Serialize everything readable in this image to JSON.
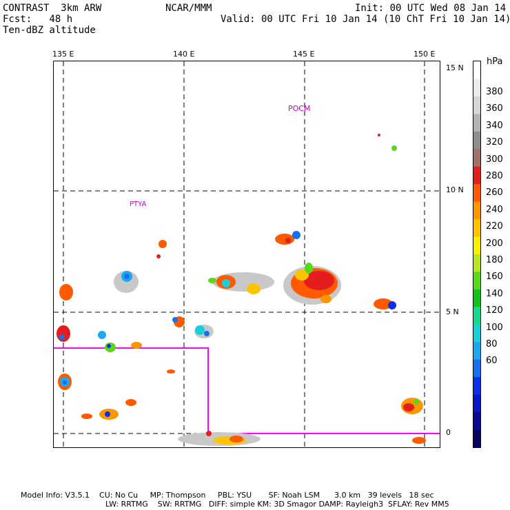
{
  "header": {
    "model": "CONTRAST  3km ARW",
    "org": "NCAR/MMM",
    "init": "Init: 00 UTC Wed 08 Jan 14",
    "fcst": "Fcst:   48 h",
    "valid": "Valid: 00 UTC Fri 10 Jan 14 (10 ChT Fri 10 Jan 14)",
    "field": "Ten-dBZ altitude"
  },
  "map": {
    "lon_ticks": [
      "135 E",
      "140 E",
      "145 E",
      "150 E"
    ],
    "lat_ticks": [
      "15 N",
      "10 N",
      "5 N",
      "0"
    ],
    "labels": [
      "POCM",
      "PTYA"
    ],
    "box_color": "#ff00ff"
  },
  "colorbar": {
    "unit": "hPa",
    "ticks": [
      "380",
      "360",
      "340",
      "320",
      "300",
      "280",
      "260",
      "240",
      "220",
      "200",
      "180",
      "160",
      "140",
      "120",
      "100",
      "80",
      "60"
    ],
    "colors": [
      "#ffffff",
      "#ececec",
      "#d6d6d6",
      "#b4b4b4",
      "#8e8e8e",
      "#a0726a",
      "#e41e1e",
      "#ff5a00",
      "#ff9600",
      "#ffc400",
      "#f8f000",
      "#b8e620",
      "#5ad81a",
      "#12c41a",
      "#18d88e",
      "#16d2d8",
      "#1aa8f0",
      "#1870f0",
      "#0c30e8",
      "#0818c8",
      "#0a0890",
      "#070660"
    ]
  },
  "footer": {
    "line1": "Model Info: V3.5.1    CU: No Cu     MP: Thompson     PBL: YSU       SF: Noah LSM      3.0 km   39 levels   18 sec",
    "line2": "LW: RRTMG    SW: RRTMG   DIFF: simple KM: 3D Smagor DAMP: Rayleigh3  SFLAY: Rev MM5"
  }
}
